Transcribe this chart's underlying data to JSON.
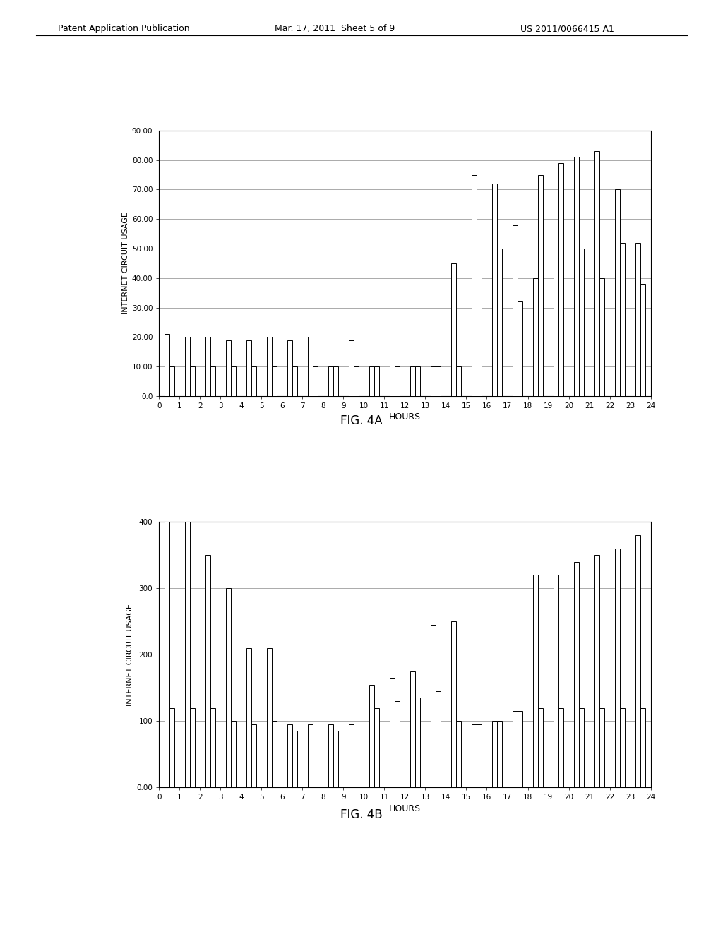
{
  "fig4a": {
    "title": "FIG. 4A",
    "xlabel": "HOURS",
    "ylabel": "INTERNET CIRCUIT USAGE",
    "ylim": [
      0,
      90
    ],
    "yticks": [
      0.0,
      10.0,
      20.0,
      30.0,
      40.0,
      50.0,
      60.0,
      70.0,
      80.0,
      90.0
    ],
    "ytick_labels": [
      "0.0",
      "10.00",
      "20.00",
      "30.00",
      "40.00",
      "50.00",
      "60.00",
      "70.00",
      "80.00",
      "90.00"
    ],
    "xticks": [
      0,
      1,
      2,
      3,
      4,
      5,
      6,
      7,
      8,
      9,
      10,
      11,
      12,
      13,
      14,
      15,
      16,
      17,
      18,
      19,
      20,
      21,
      22,
      23,
      24
    ],
    "bar_pairs": [
      {
        "hour": 0,
        "val1": 21,
        "val2": 10
      },
      {
        "hour": 1,
        "val1": 20,
        "val2": 10
      },
      {
        "hour": 2,
        "val1": 20,
        "val2": 10
      },
      {
        "hour": 3,
        "val1": 19,
        "val2": 10
      },
      {
        "hour": 4,
        "val1": 19,
        "val2": 10
      },
      {
        "hour": 5,
        "val1": 20,
        "val2": 10
      },
      {
        "hour": 6,
        "val1": 19,
        "val2": 10
      },
      {
        "hour": 7,
        "val1": 20,
        "val2": 10
      },
      {
        "hour": 8,
        "val1": 10,
        "val2": 10
      },
      {
        "hour": 9,
        "val1": 19,
        "val2": 10
      },
      {
        "hour": 10,
        "val1": 10,
        "val2": 10
      },
      {
        "hour": 11,
        "val1": 25,
        "val2": 10
      },
      {
        "hour": 12,
        "val1": 10,
        "val2": 10
      },
      {
        "hour": 13,
        "val1": 10,
        "val2": 10
      },
      {
        "hour": 14,
        "val1": 45,
        "val2": 10
      },
      {
        "hour": 15,
        "val1": 75,
        "val2": 50
      },
      {
        "hour": 16,
        "val1": 72,
        "val2": 50
      },
      {
        "hour": 17,
        "val1": 58,
        "val2": 32
      },
      {
        "hour": 18,
        "val1": 40,
        "val2": 75
      },
      {
        "hour": 19,
        "val1": 47,
        "val2": 79
      },
      {
        "hour": 20,
        "val1": 81,
        "val2": 50
      },
      {
        "hour": 21,
        "val1": 83,
        "val2": 40
      },
      {
        "hour": 22,
        "val1": 70,
        "val2": 52
      },
      {
        "hour": 23,
        "val1": 52,
        "val2": 38
      }
    ]
  },
  "fig4b": {
    "title": "FIG. 4B",
    "xlabel": "HOURS",
    "ylabel": "INTERNET CIRCUIT USAGE",
    "ylim": [
      0,
      400
    ],
    "yticks": [
      0,
      100,
      200,
      300,
      400
    ],
    "ytick_labels": [
      "0.00",
      "100",
      "200",
      "300",
      "400"
    ],
    "xticks": [
      0,
      1,
      2,
      3,
      4,
      5,
      6,
      7,
      8,
      9,
      10,
      11,
      12,
      13,
      14,
      15,
      16,
      17,
      18,
      19,
      20,
      21,
      22,
      23,
      24
    ],
    "bar_pairs": [
      {
        "hour": 0,
        "val1": 400,
        "val2": 120
      },
      {
        "hour": 1,
        "val1": 400,
        "val2": 120
      },
      {
        "hour": 2,
        "val1": 350,
        "val2": 120
      },
      {
        "hour": 3,
        "val1": 300,
        "val2": 100
      },
      {
        "hour": 4,
        "val1": 210,
        "val2": 95
      },
      {
        "hour": 5,
        "val1": 210,
        "val2": 100
      },
      {
        "hour": 6,
        "val1": 95,
        "val2": 85
      },
      {
        "hour": 7,
        "val1": 95,
        "val2": 85
      },
      {
        "hour": 8,
        "val1": 95,
        "val2": 85
      },
      {
        "hour": 9,
        "val1": 95,
        "val2": 85
      },
      {
        "hour": 10,
        "val1": 155,
        "val2": 120
      },
      {
        "hour": 11,
        "val1": 165,
        "val2": 130
      },
      {
        "hour": 12,
        "val1": 175,
        "val2": 135
      },
      {
        "hour": 13,
        "val1": 245,
        "val2": 145
      },
      {
        "hour": 14,
        "val1": 250,
        "val2": 100
      },
      {
        "hour": 15,
        "val1": 95,
        "val2": 95
      },
      {
        "hour": 16,
        "val1": 100,
        "val2": 100
      },
      {
        "hour": 17,
        "val1": 115,
        "val2": 115
      },
      {
        "hour": 18,
        "val1": 320,
        "val2": 120
      },
      {
        "hour": 19,
        "val1": 320,
        "val2": 120
      },
      {
        "hour": 20,
        "val1": 340,
        "val2": 120
      },
      {
        "hour": 21,
        "val1": 350,
        "val2": 120
      },
      {
        "hour": 22,
        "val1": 360,
        "val2": 120
      },
      {
        "hour": 23,
        "val1": 380,
        "val2": 120
      }
    ]
  },
  "page_header_left": "Patent Application Publication",
  "page_header_mid": "Mar. 17, 2011  Sheet 5 of 9",
  "page_header_right": "US 2011/0066415 A1",
  "bar_width": 0.25,
  "bar_color": "#ffffff",
  "bar_edge_color": "#000000",
  "bg_color": "#ffffff",
  "grid_color": "#888888"
}
